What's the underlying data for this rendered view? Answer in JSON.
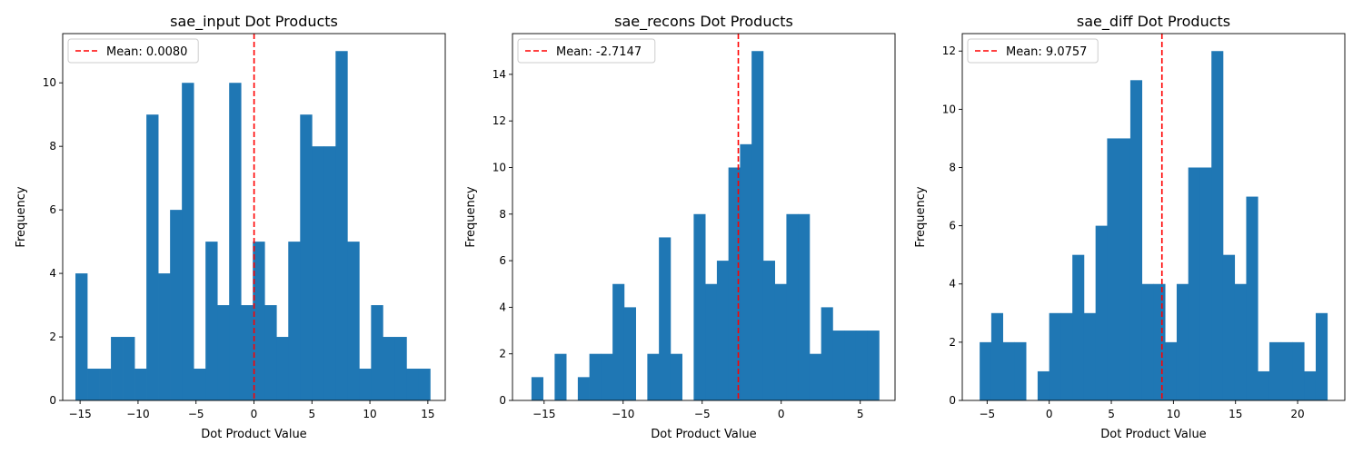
{
  "figure": {
    "bar_color": "#1f77b4",
    "mean_line_color": "#ff0000"
  },
  "chart_data": [
    {
      "type": "bar",
      "title": "sae_input Dot Products",
      "xlabel": "Dot Product Value",
      "ylabel": "Frequency",
      "xlim": [
        -16.5,
        16.5
      ],
      "ylim": [
        0,
        11.55
      ],
      "xticks": [
        -15,
        -10,
        -5,
        0,
        5,
        10,
        15
      ],
      "yticks": [
        0,
        2,
        4,
        6,
        8,
        10
      ],
      "bin_start": -15.4,
      "bin_width": 1.02,
      "counts": [
        4,
        1,
        1,
        2,
        2,
        1,
        9,
        4,
        6,
        10,
        1,
        5,
        3,
        10,
        3,
        5,
        3,
        2,
        5,
        9,
        8,
        8,
        11,
        5,
        1,
        3,
        2,
        2,
        1,
        1
      ],
      "mean": 0.008,
      "legend": {
        "label": "Mean: 0.0080",
        "position": "upper-left"
      }
    },
    {
      "type": "bar",
      "title": "sae_recons Dot Products",
      "xlabel": "Dot Product Value",
      "ylabel": "Frequency",
      "xlim": [
        -17.0,
        7.2
      ],
      "ylim": [
        0,
        15.75
      ],
      "xticks": [
        -15,
        -10,
        -5,
        0,
        5
      ],
      "yticks": [
        0,
        2,
        4,
        6,
        8,
        10,
        12,
        14
      ],
      "bin_start": -15.8,
      "bin_width": 0.733,
      "counts": [
        1,
        0,
        2,
        0,
        1,
        2,
        2,
        5,
        4,
        0,
        2,
        7,
        2,
        0,
        8,
        5,
        6,
        10,
        11,
        15,
        6,
        5,
        8,
        8,
        2,
        4,
        3,
        3,
        3,
        3
      ],
      "mean": -2.7147,
      "legend": {
        "label": "Mean: -2.7147",
        "position": "upper-left"
      }
    },
    {
      "type": "bar",
      "title": "sae_diff Dot Products",
      "xlabel": "Dot Product Value",
      "ylabel": "Frequency",
      "xlim": [
        -7.0,
        23.8
      ],
      "ylim": [
        0,
        12.6
      ],
      "xticks": [
        -5,
        0,
        5,
        10,
        15,
        20
      ],
      "yticks": [
        0,
        2,
        4,
        6,
        8,
        10,
        12
      ],
      "bin_start": -5.6,
      "bin_width": 0.933,
      "counts": [
        2,
        3,
        2,
        2,
        0,
        1,
        3,
        3,
        5,
        3,
        6,
        9,
        9,
        11,
        4,
        4,
        2,
        4,
        8,
        8,
        12,
        5,
        4,
        7,
        1,
        2,
        2,
        2,
        1,
        3
      ],
      "mean": 9.0757,
      "legend": {
        "label": "Mean: 9.0757",
        "position": "upper-left"
      }
    }
  ]
}
